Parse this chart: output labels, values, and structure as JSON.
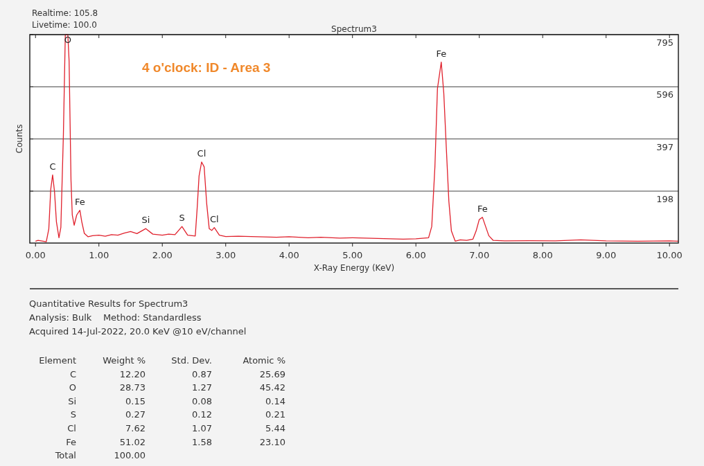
{
  "chart_data": {
    "type": "line",
    "title": "Spectrum3",
    "xlabel": "X-Ray Energy (KeV)",
    "ylabel": "Counts",
    "xlim": [
      -0.09,
      10.14
    ],
    "ylim": [
      0,
      795
    ],
    "xticks": [
      {
        "value": 0,
        "label": "0.00"
      },
      {
        "value": 1,
        "label": "1.00"
      },
      {
        "value": 2,
        "label": "2.00"
      },
      {
        "value": 3,
        "label": "3.00"
      },
      {
        "value": 4,
        "label": "4.00"
      },
      {
        "value": 5,
        "label": "5.00"
      },
      {
        "value": 6,
        "label": "6.00"
      },
      {
        "value": 7,
        "label": "7.00"
      },
      {
        "value": 8,
        "label": "8.00"
      },
      {
        "value": 9,
        "label": "9.00"
      },
      {
        "value": 10,
        "label": "10.00"
      }
    ],
    "yticks": [
      198,
      397,
      596,
      795
    ],
    "grid": "y",
    "marker": "none",
    "line_style": "solid",
    "series": [
      {
        "color": "#e0202c",
        "x": [
          0.0,
          0.04,
          0.17,
          0.21,
          0.24,
          0.27,
          0.3,
          0.33,
          0.37,
          0.4,
          0.44,
          0.47,
          0.51,
          0.53,
          0.56,
          0.58,
          0.61,
          0.65,
          0.7,
          0.73,
          0.77,
          0.83,
          0.9,
          1.0,
          1.1,
          1.2,
          1.3,
          1.4,
          1.5,
          1.6,
          1.74,
          1.85,
          2.0,
          2.1,
          2.2,
          2.31,
          2.4,
          2.52,
          2.55,
          2.58,
          2.62,
          2.66,
          2.7,
          2.74,
          2.78,
          2.82,
          2.9,
          3.0,
          3.2,
          3.5,
          3.8,
          4.0,
          4.3,
          4.5,
          4.8,
          5.0,
          5.3,
          5.6,
          5.8,
          6.0,
          6.2,
          6.25,
          6.3,
          6.34,
          6.4,
          6.44,
          6.48,
          6.52,
          6.56,
          6.62,
          6.7,
          6.8,
          6.9,
          6.95,
          7.0,
          7.05,
          7.1,
          7.15,
          7.22,
          7.4,
          7.8,
          8.2,
          8.6,
          9.0,
          9.5,
          10.0,
          10.14
        ],
        "values": [
          7,
          10,
          5,
          54,
          204,
          260,
          196,
          81,
          20,
          60,
          414,
          795,
          795,
          694,
          239,
          107,
          68,
          107,
          125,
          81,
          37,
          24,
          28,
          30,
          26,
          32,
          30,
          38,
          44,
          36,
          55,
          34,
          30,
          34,
          32,
          63,
          30,
          27,
          133,
          256,
          309,
          291,
          151,
          55,
          48,
          59,
          30,
          25,
          26,
          24,
          22,
          24,
          20,
          22,
          19,
          20,
          18,
          16,
          15,
          16,
          20,
          63,
          291,
          589,
          690,
          572,
          362,
          159,
          46,
          7,
          12,
          10,
          15,
          46,
          90,
          98,
          63,
          28,
          10,
          8,
          9,
          8,
          12,
          8,
          7,
          8,
          7
        ]
      }
    ],
    "annotations": [
      "Realtime: 105.8",
      "Livetime: 100.0",
      "4 o'clock: ID - Area 3",
      {
        "text": "C",
        "x": 0.27,
        "y": 260
      },
      {
        "text": "O",
        "x": 0.51,
        "y": 795
      },
      {
        "text": "Fe",
        "x": 0.7,
        "y": 125
      },
      {
        "text": "Si",
        "x": 1.74,
        "y": 55
      },
      {
        "text": "S",
        "x": 2.31,
        "y": 63
      },
      {
        "text": "Cl",
        "x": 2.62,
        "y": 309
      },
      {
        "text": "Cl",
        "x": 2.82,
        "y": 59
      },
      {
        "text": "Fe",
        "x": 6.4,
        "y": 690
      },
      {
        "text": "Fe",
        "x": 7.05,
        "y": 98
      },
      "Quantitative Results for Spectrum3",
      "Analysis: Bulk    Method: Standardless",
      "Acquired 14-Jul-2022, 20.0 KeV @10 eV/channel",
      "Element  Weight %  Std. Dev.  Atomic %",
      "C  12.20  0.87  25.69",
      "O  28.73  1.27  45.42",
      "Si  0.15  0.08  0.14",
      "S  0.27  0.12  0.21",
      "Cl  7.62  1.07  5.44",
      "Fe  51.02  1.58  23.10",
      "Total  100.00"
    ]
  }
}
